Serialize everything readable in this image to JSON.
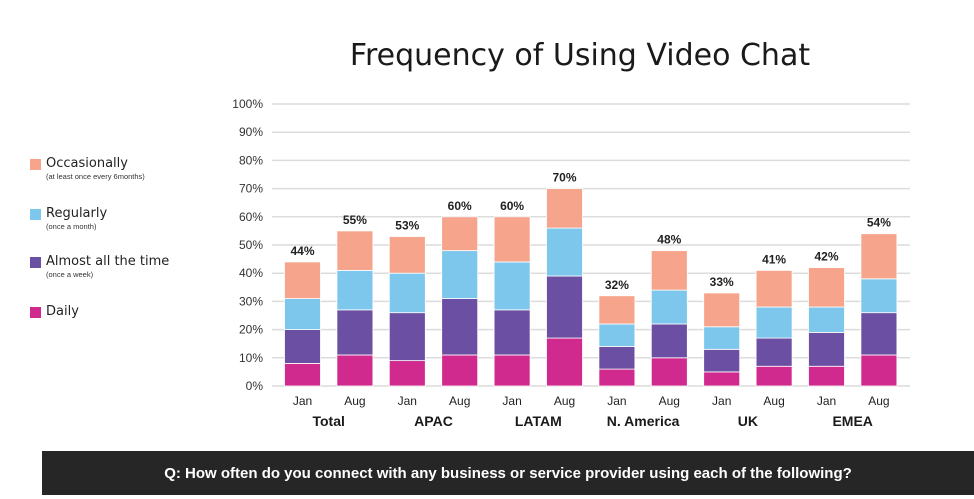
{
  "chart_data": {
    "type": "bar",
    "stacked": true,
    "title": "Frequency of Using Video Chat",
    "question": "Q: How often do you connect with any business or service provider using each of the following?",
    "ylim": [
      0,
      100
    ],
    "yticks": [
      "0%",
      "10%",
      "20%",
      "30%",
      "40%",
      "50%",
      "60%",
      "70%",
      "80%",
      "90%",
      "100%"
    ],
    "grid": true,
    "legend_position": "left",
    "groups": [
      {
        "name": "Total",
        "categories": [
          "Jan",
          "Aug"
        ]
      },
      {
        "name": "APAC",
        "categories": [
          "Jan",
          "Aug"
        ]
      },
      {
        "name": "LATAM",
        "categories": [
          "Jan",
          "Aug"
        ]
      },
      {
        "name": "N. America",
        "categories": [
          "Jan",
          "Aug"
        ]
      },
      {
        "name": "UK",
        "categories": [
          "Jan",
          "Aug"
        ]
      },
      {
        "name": "EMEA",
        "categories": [
          "Jan",
          "Aug"
        ]
      }
    ],
    "categories": [
      "Jan",
      "Aug",
      "Jan",
      "Aug",
      "Jan",
      "Aug",
      "Jan",
      "Aug",
      "Jan",
      "Aug",
      "Jan",
      "Aug"
    ],
    "series": [
      {
        "name": "Daily",
        "color": "#d12a8f",
        "values": [
          8,
          11,
          9,
          11,
          11,
          17,
          6,
          10,
          5,
          7,
          7,
          11
        ]
      },
      {
        "name": "Almost all the time",
        "subtitle": "(once a week)",
        "color": "#6a4fa2",
        "values": [
          12,
          16,
          17,
          20,
          16,
          22,
          8,
          12,
          8,
          10,
          12,
          15
        ]
      },
      {
        "name": "Regularly",
        "subtitle": "(once a month)",
        "color": "#7ec7ec",
        "values": [
          11,
          14,
          14,
          17,
          17,
          17,
          8,
          12,
          8,
          11,
          9,
          12
        ]
      },
      {
        "name": "Occasionally",
        "subtitle": "(at least once every 6months)",
        "color": "#f6a58c",
        "values": [
          13,
          14,
          13,
          12,
          16,
          14,
          10,
          14,
          12,
          13,
          14,
          16
        ]
      }
    ],
    "totals": [
      "44%",
      "55%",
      "53%",
      "60%",
      "60%",
      "70%",
      "32%",
      "48%",
      "33%",
      "41%",
      "42%",
      "54%"
    ]
  },
  "legend_order": [
    "Occasionally",
    "Regularly",
    "Almost all the time",
    "Daily"
  ]
}
